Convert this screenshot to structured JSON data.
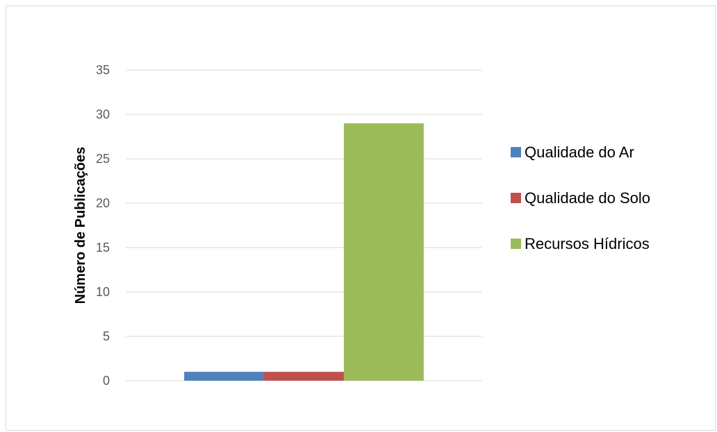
{
  "chart_data": {
    "type": "bar",
    "title": "",
    "xlabel": "",
    "ylabel": "Número de Publicações",
    "ylim": [
      0,
      35
    ],
    "yticks": [
      0,
      5,
      10,
      15,
      20,
      25,
      30,
      35
    ],
    "grid": true,
    "legend_position": "right",
    "categories": [
      ""
    ],
    "series": [
      {
        "name": "Qualidade do Ar",
        "values": [
          1
        ],
        "color": "#4f81bd"
      },
      {
        "name": "Qualidade do Solo",
        "values": [
          1
        ],
        "color": "#c0504d"
      },
      {
        "name": "Recursos Hídricos",
        "values": [
          29
        ],
        "color": "#9bbb59"
      }
    ]
  }
}
